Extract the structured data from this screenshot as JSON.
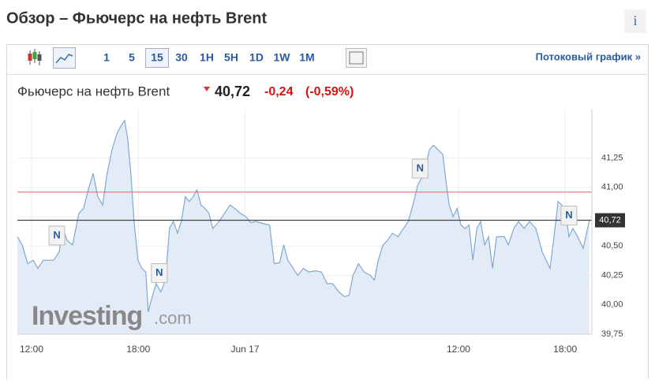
{
  "header": {
    "title": "Обзор – Фьючерс на нефть Brent",
    "info": "i"
  },
  "toolbar": {
    "intervals": [
      "1",
      "5",
      "15",
      "30",
      "1H",
      "5H",
      "1D",
      "1W",
      "1M"
    ],
    "active_interval": 2,
    "stream_link": "Потоковый график »"
  },
  "quote": {
    "name": "Фьючерс на нефть Brent",
    "price": {
      "value": 40.72,
      "label": "40,72"
    },
    "change": {
      "value": -0.24,
      "label": "-0,24"
    },
    "change_pct": {
      "value": -0.59,
      "label": "(-0,59%)"
    }
  },
  "watermark": {
    "brand": "investing",
    "suffix": ".com"
  },
  "chart_data": {
    "type": "area",
    "color": "#7fa8d4",
    "fill": "#e3ecf6",
    "x": [
      -0.8,
      -0.53,
      -0.22,
      0.09,
      0.35,
      0.66,
      0.97,
      1.24,
      1.55,
      1.77,
      1.99,
      2.3,
      2.66,
      2.92,
      3.19,
      3.46,
      3.72,
      3.99,
      4.25,
      4.52,
      4.78,
      5.01,
      5.23,
      5.4,
      5.58,
      5.76,
      5.98,
      6.2,
      6.42,
      6.56,
      6.73,
      7.0,
      7.27,
      7.53,
      7.75,
      7.97,
      8.2,
      8.42,
      8.64,
      8.86,
      9.08,
      9.3,
      9.52,
      9.75,
      9.97,
      10.19,
      10.54,
      10.85,
      11.16,
      11.43,
      11.74,
      12.05,
      12.32,
      12.63,
      13.07,
      13.38,
      13.64,
      13.95,
      14.18,
      14.4,
      14.71,
      14.97,
      15.28,
      15.59,
      15.95,
      16.3,
      16.61,
      16.92,
      17.28,
      17.59,
      17.85,
      18.07,
      18.38,
      18.69,
      19.05,
      19.27,
      19.49,
      19.76,
      20.02,
      20.29,
      20.6,
      20.91,
      21.18,
      21.49,
      21.71,
      21.93,
      22.15,
      22.37,
      22.59,
      22.86,
      23.12,
      23.3,
      23.48,
      23.7,
      23.92,
      24.14,
      24.37,
      24.59,
      24.81,
      25.03,
      25.25,
      25.47,
      25.69,
      25.92,
      26.14,
      26.58,
      26.8,
      27.11,
      27.38,
      27.69,
      28.0,
      28.35,
      28.71,
      29.15,
      29.37,
      29.6,
      29.81,
      30.04,
      30.21,
      30.43,
      30.7,
      31.01,
      31.36
    ],
    "values": [
      40.58,
      40.51,
      40.35,
      40.38,
      40.31,
      40.38,
      40.38,
      40.38,
      40.45,
      40.65,
      40.55,
      40.51,
      40.78,
      40.82,
      40.98,
      41.12,
      40.92,
      40.85,
      41.12,
      41.32,
      41.45,
      41.52,
      41.57,
      41.42,
      41.12,
      40.71,
      40.38,
      40.31,
      40.28,
      39.94,
      40.04,
      40.18,
      40.11,
      40.21,
      40.65,
      40.71,
      40.61,
      40.71,
      40.92,
      40.88,
      40.92,
      40.98,
      40.85,
      40.82,
      40.78,
      40.65,
      40.71,
      40.78,
      40.85,
      40.82,
      40.78,
      40.75,
      40.7,
      40.71,
      40.69,
      40.68,
      40.35,
      40.36,
      40.51,
      40.38,
      40.31,
      40.25,
      40.31,
      40.28,
      40.29,
      40.28,
      40.18,
      40.18,
      40.11,
      40.07,
      40.08,
      40.25,
      40.35,
      40.28,
      40.25,
      40.21,
      40.38,
      40.51,
      40.55,
      40.61,
      40.58,
      40.65,
      40.71,
      40.88,
      41.02,
      41.08,
      41.18,
      41.32,
      41.36,
      41.32,
      41.28,
      41.05,
      40.85,
      40.75,
      40.82,
      40.68,
      40.65,
      40.68,
      40.38,
      40.65,
      40.71,
      40.51,
      40.58,
      40.31,
      40.58,
      40.58,
      40.51,
      40.65,
      40.71,
      40.65,
      40.71,
      40.65,
      40.45,
      40.31,
      40.58,
      40.88,
      40.85,
      40.78,
      40.58,
      40.65,
      40.58,
      40.48,
      40.72
    ],
    "xlim": [
      -0.8,
      31.5
    ],
    "xticks": [
      {
        "value": 0,
        "label": "12:00"
      },
      {
        "value": 6,
        "label": "18:00"
      },
      {
        "value": 12,
        "label": "Jun 17"
      },
      {
        "value": 24,
        "label": "12:00"
      },
      {
        "value": 30,
        "label": "18:00"
      }
    ],
    "ylim": [
      39.75,
      41.67
    ],
    "yticks": [
      {
        "value": 39.75,
        "label": "39,75"
      },
      {
        "value": 40.0,
        "label": "40,00"
      },
      {
        "value": 40.25,
        "label": "40,25"
      },
      {
        "value": 40.5,
        "label": "40,50"
      },
      {
        "value": 40.75,
        "label": "40,75"
      },
      {
        "value": 41.0,
        "label": "41,00"
      },
      {
        "value": 41.25,
        "label": "41,25"
      }
    ],
    "grid": true,
    "prev_close": {
      "value": 40.96,
      "color": "#e06666"
    },
    "last_line_color": "#444444",
    "news_markers": [
      {
        "x": 1.42,
        "y": 40.59,
        "label": "N"
      },
      {
        "x": 7.18,
        "y": 40.27,
        "label": "N"
      },
      {
        "x": 21.84,
        "y": 41.16,
        "label": "N"
      },
      {
        "x": 30.21,
        "y": 40.76,
        "label": "N"
      }
    ]
  }
}
